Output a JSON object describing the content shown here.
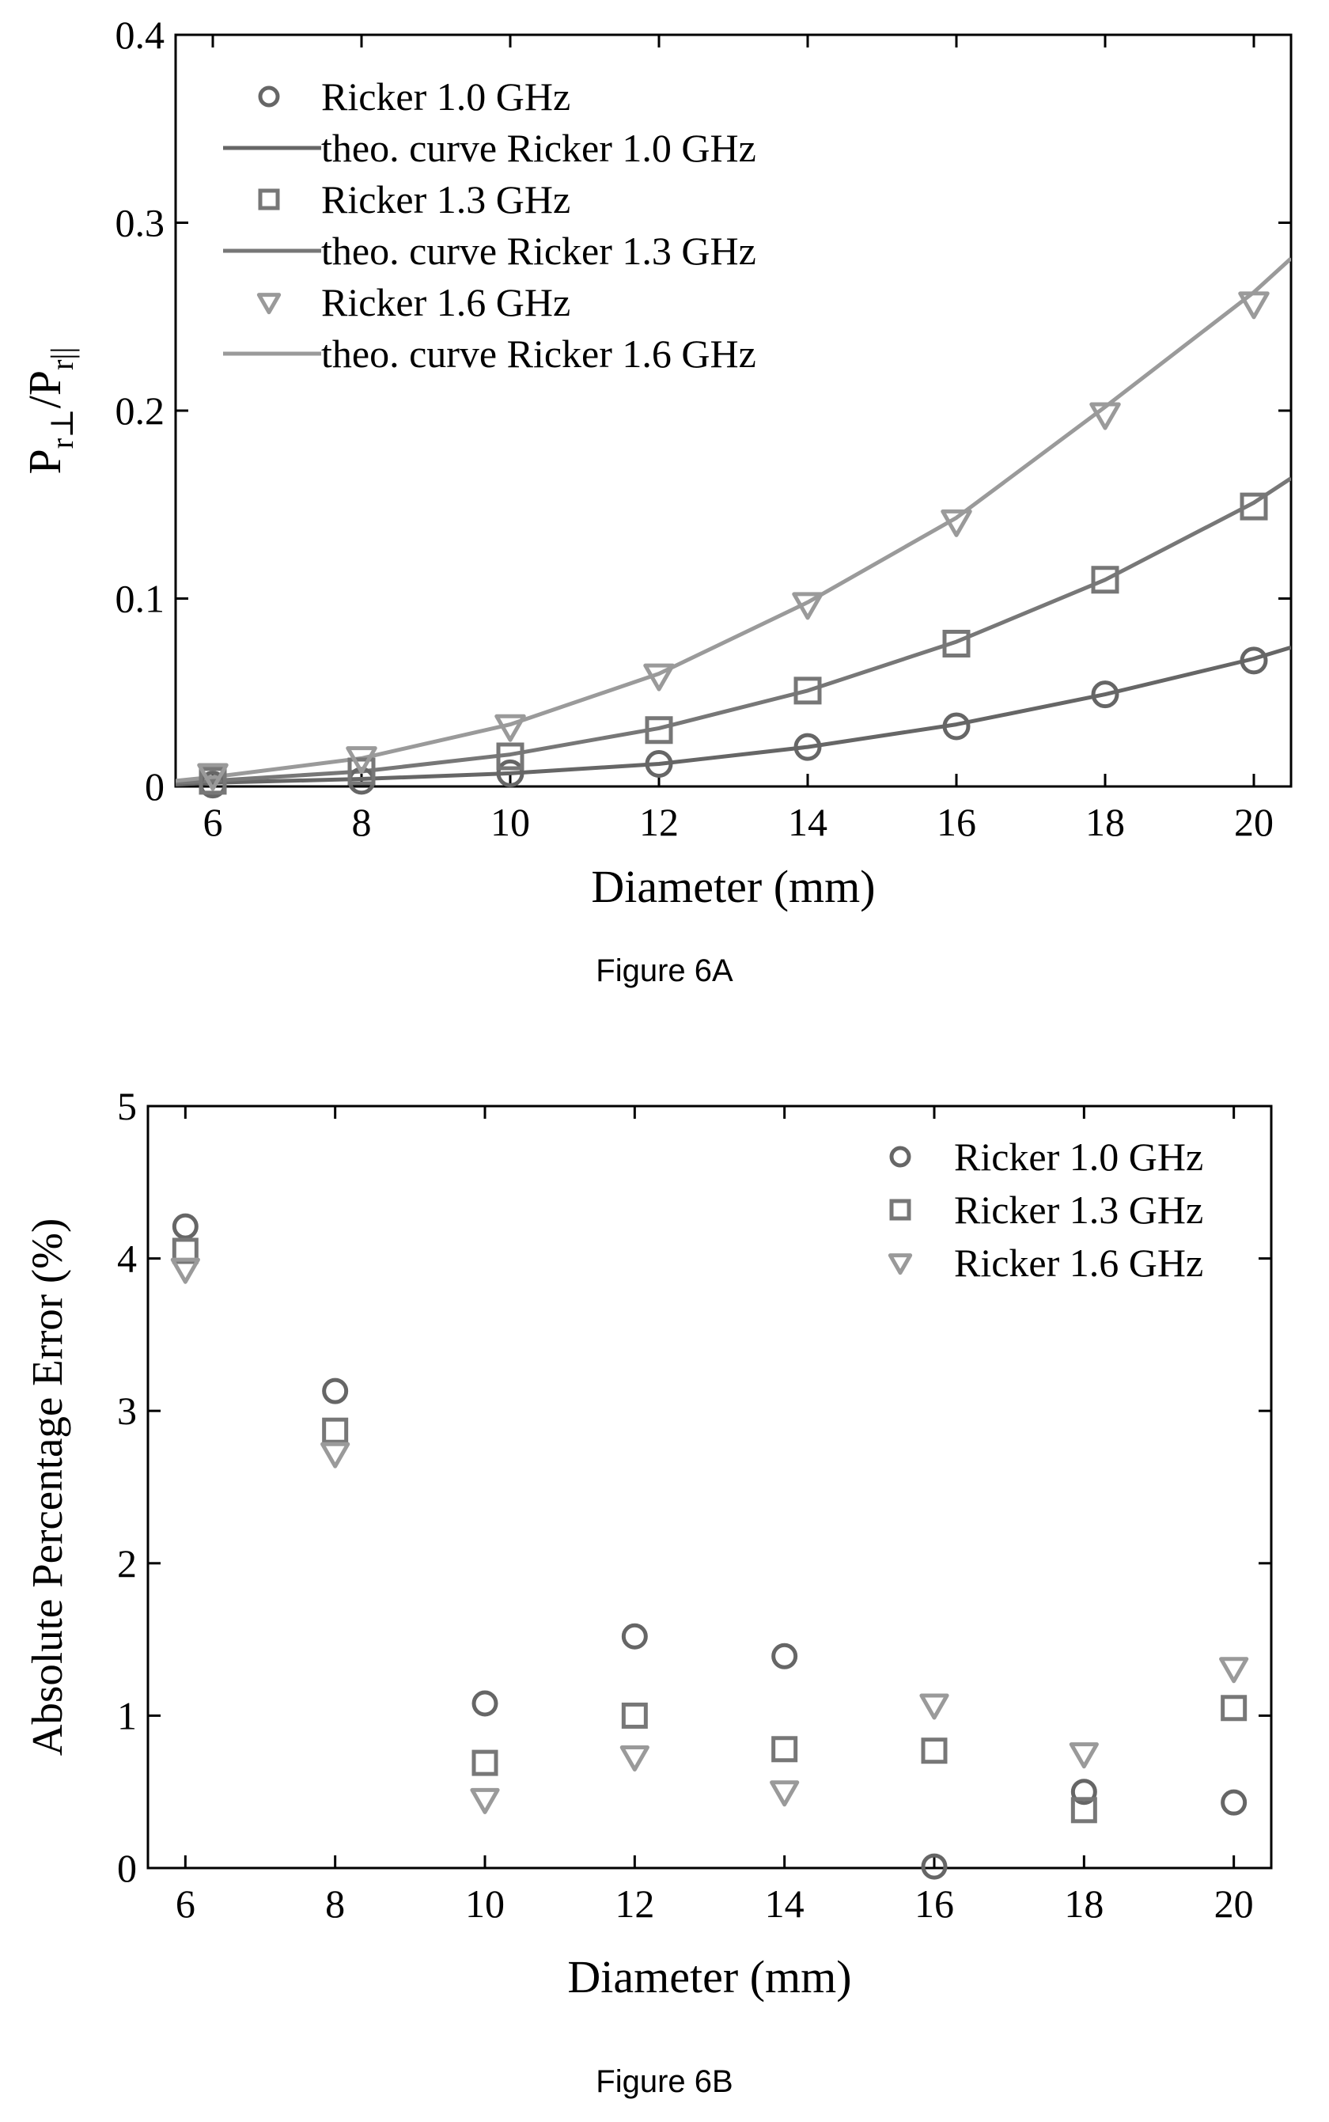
{
  "colors": {
    "series_1_0": "#666666",
    "series_1_3": "#777777",
    "series_1_6": "#9a9a9a",
    "axis": "#000000"
  },
  "chart_data": [
    {
      "type": "scatter",
      "caption": "Figure 6A",
      "xlabel": "Diameter (mm)",
      "ylabel_parts": [
        "P",
        "r⊥",
        "/P",
        "r||"
      ],
      "xlim": [
        5.5,
        20.5
      ],
      "ylim": [
        0,
        0.4
      ],
      "xticks": [
        6,
        8,
        10,
        12,
        14,
        16,
        18,
        20
      ],
      "yticks": [
        0,
        0.1,
        0.2,
        0.3,
        0.4
      ],
      "ytick_labels": [
        "0",
        "0.1",
        "0.2",
        "0.3",
        "0.4"
      ],
      "legend_position": "top-left",
      "series": [
        {
          "name": "Ricker 1.0 GHz",
          "kind": "markers",
          "marker": "circle",
          "color_key": "series_1_0",
          "x": [
            6,
            8,
            10,
            12,
            14,
            16,
            18,
            20
          ],
          "y": [
            0.001,
            0.003,
            0.007,
            0.012,
            0.021,
            0.032,
            0.049,
            0.067
          ]
        },
        {
          "name": "theo. curve Ricker 1.0 GHz",
          "kind": "line",
          "color_key": "series_1_0",
          "x": [
            5.5,
            6,
            8,
            10,
            12,
            14,
            16,
            18,
            20,
            20.5
          ],
          "y": [
            0.001,
            0.002,
            0.004,
            0.007,
            0.012,
            0.021,
            0.033,
            0.049,
            0.068,
            0.074
          ]
        },
        {
          "name": "Ricker 1.3 GHz",
          "kind": "markers",
          "marker": "square",
          "color_key": "series_1_3",
          "x": [
            6,
            8,
            10,
            12,
            14,
            16,
            18,
            20
          ],
          "y": [
            0.003,
            0.008,
            0.016,
            0.03,
            0.051,
            0.076,
            0.11,
            0.149
          ]
        },
        {
          "name": "theo. curve Ricker 1.3 GHz",
          "kind": "line",
          "color_key": "series_1_3",
          "x": [
            5.5,
            6,
            8,
            10,
            12,
            14,
            16,
            18,
            20,
            20.5
          ],
          "y": [
            0.002,
            0.003,
            0.008,
            0.017,
            0.031,
            0.051,
            0.077,
            0.11,
            0.151,
            0.164
          ]
        },
        {
          "name": "Ricker 1.6 GHz",
          "kind": "markers",
          "marker": "triangle-down",
          "color_key": "series_1_6",
          "x": [
            6,
            8,
            10,
            12,
            14,
            16,
            18,
            20
          ],
          "y": [
            0.006,
            0.015,
            0.032,
            0.059,
            0.097,
            0.141,
            0.198,
            0.257
          ]
        },
        {
          "name": "theo. curve Ricker 1.6 GHz",
          "kind": "line",
          "color_key": "series_1_6",
          "x": [
            5.5,
            6,
            8,
            10,
            12,
            14,
            16,
            18,
            20,
            20.5
          ],
          "y": [
            0.003,
            0.005,
            0.015,
            0.033,
            0.06,
            0.098,
            0.143,
            0.202,
            0.263,
            0.281
          ]
        }
      ]
    },
    {
      "type": "scatter",
      "caption": "Figure 6B",
      "xlabel": "Diameter (mm)",
      "ylabel": "Absolute Percentage Error (%)",
      "xlim": [
        5.5,
        20.5
      ],
      "ylim": [
        0,
        5
      ],
      "xticks": [
        6,
        8,
        10,
        12,
        14,
        16,
        18,
        20
      ],
      "yticks": [
        0,
        1,
        2,
        3,
        4,
        5
      ],
      "ytick_labels": [
        "0",
        "1",
        "2",
        "3",
        "4",
        "5"
      ],
      "legend_position": "top-right",
      "series": [
        {
          "name": "Ricker 1.0 GHz",
          "kind": "markers",
          "marker": "circle",
          "color_key": "series_1_0",
          "x": [
            6,
            8,
            10,
            12,
            14,
            16,
            18,
            20
          ],
          "y": [
            4.21,
            3.13,
            1.08,
            1.52,
            1.39,
            0.01,
            0.5,
            0.43
          ]
        },
        {
          "name": "Ricker 1.3 GHz",
          "kind": "markers",
          "marker": "square",
          "color_key": "series_1_3",
          "x": [
            6,
            8,
            10,
            12,
            14,
            16,
            18,
            20
          ],
          "y": [
            4.05,
            2.87,
            0.69,
            1.0,
            0.78,
            0.77,
            0.38,
            1.05
          ]
        },
        {
          "name": "Ricker 1.6 GHz",
          "kind": "markers",
          "marker": "triangle-down",
          "color_key": "series_1_6",
          "x": [
            6,
            8,
            10,
            12,
            14,
            16,
            18,
            20
          ],
          "y": [
            3.93,
            2.72,
            0.45,
            0.73,
            0.5,
            1.07,
            0.75,
            1.31
          ]
        }
      ]
    }
  ]
}
